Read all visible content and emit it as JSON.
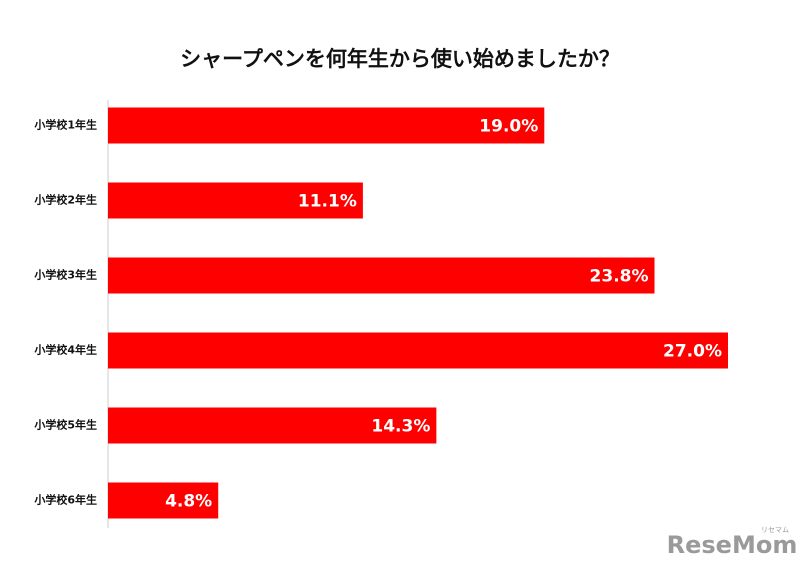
{
  "chart_data": {
    "type": "hbar",
    "title": "シャープペンを何年生から使い始めましたか？",
    "categories": [
      "小学校1年生",
      "小学校2年生",
      "小学校3年生",
      "小学校4年生",
      "小学校5年生",
      "小学校6年生"
    ],
    "values": [
      19.0,
      11.1,
      23.8,
      27.0,
      14.3,
      4.8
    ],
    "value_labels": [
      "19.0%",
      "11.1%",
      "23.8%",
      "27.0%",
      "14.3%",
      "4.8%"
    ],
    "color": "#ff0000"
  },
  "watermark": {
    "text": "ReseMom",
    "kana": "リセマム"
  }
}
